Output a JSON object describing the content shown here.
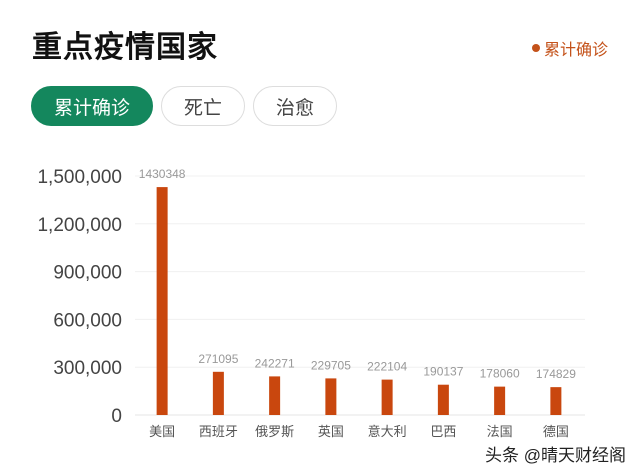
{
  "header": {
    "title": "重点疫情国家",
    "legend_label": "累计确诊"
  },
  "tabs": [
    {
      "label": "累计确诊",
      "active": true
    },
    {
      "label": "死亡",
      "active": false
    },
    {
      "label": "治愈",
      "active": false
    }
  ],
  "watermark": "头条 @晴天财经阁",
  "colors": {
    "bar": "#c9470e",
    "accent": "#14875d",
    "legend": "#c4521a"
  },
  "chart_data": {
    "type": "bar",
    "categories": [
      "美国",
      "西班牙",
      "俄罗斯",
      "英国",
      "意大利",
      "巴西",
      "法国",
      "德国"
    ],
    "values": [
      1430348,
      271095,
      242271,
      229705,
      222104,
      190137,
      178060,
      174829
    ],
    "series": [
      {
        "name": "累计确诊",
        "values": [
          1430348,
          271095,
          242271,
          229705,
          222104,
          190137,
          178060,
          174829
        ]
      }
    ],
    "yticks": [
      "0",
      "300,000",
      "600,000",
      "900,000",
      "1,200,000",
      "1,500,000"
    ],
    "ylim": [
      0,
      1500000
    ],
    "grid": true,
    "legend_position": "top-right"
  }
}
